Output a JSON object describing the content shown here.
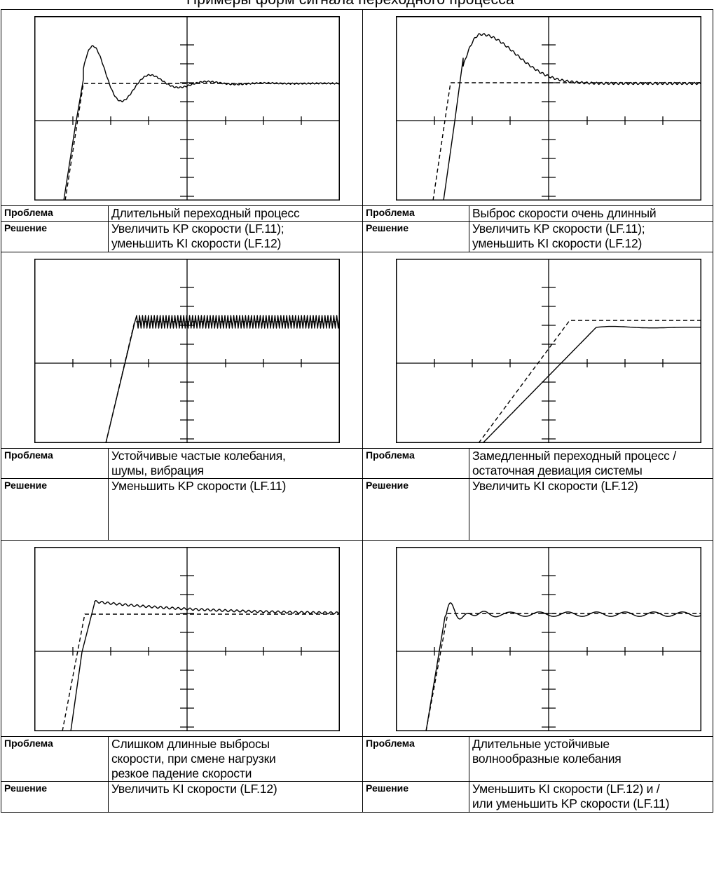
{
  "header_text": "Примеры форм сигнала переходного процесса",
  "label_problem": "Проблема",
  "label_solution": "Решение",
  "panels": [
    {
      "problem": [
        "Длительный переходный процесс"
      ],
      "solution": [
        "Увеличить KP скорости (LF.11);",
        "уменьшить KI скорости (LF.12)"
      ],
      "chart_data": {
        "type": "line",
        "pattern": "underdamped-long-oscillation",
        "series": [
          {
            "role": "reference",
            "style": "dashed"
          },
          {
            "role": "response",
            "style": "solid"
          }
        ]
      }
    },
    {
      "problem": [
        "Выброс скорости очень длинный"
      ],
      "solution": [
        "Увеличить KP скорости (LF.11);",
        "уменьшить KI скорости (LF.12)"
      ],
      "chart_data": {
        "type": "line",
        "pattern": "long-overshoot",
        "series": [
          {
            "role": "reference",
            "style": "dashed"
          },
          {
            "role": "response",
            "style": "solid"
          }
        ]
      }
    },
    {
      "problem": [
        "Устойчивые частые колебания,",
        "шумы, вибрация"
      ],
      "solution": [
        "Уменьшить KP скорости (LF.11)"
      ],
      "chart_data": {
        "type": "line",
        "pattern": "high-frequency-oscillation",
        "series": [
          {
            "role": "reference",
            "style": "dashed"
          },
          {
            "role": "response",
            "style": "solid"
          }
        ]
      }
    },
    {
      "problem": [
        "Замедленный переходный процесс /",
        "остаточная девиация системы"
      ],
      "solution": [
        "Увеличить KI скорости (LF.12)"
      ],
      "chart_data": {
        "type": "line",
        "pattern": "slow-response-offset",
        "series": [
          {
            "role": "reference",
            "style": "dashed"
          },
          {
            "role": "response",
            "style": "solid"
          }
        ]
      }
    },
    {
      "problem": [
        "Слишком длинные выбросы",
        "скорости, при смене нагрузки",
        "резкое падение скорости"
      ],
      "solution": [
        "Увеличить KI скорости (LF.12)"
      ],
      "chart_data": {
        "type": "line",
        "pattern": "overshoot-slow-decay",
        "series": [
          {
            "role": "reference",
            "style": "dashed"
          },
          {
            "role": "response",
            "style": "solid"
          }
        ]
      }
    },
    {
      "problem": [
        "Длительные устойчивые",
        "волнообразные колебания"
      ],
      "solution": [
        "Уменьшить KI скорости (LF.12) и /",
        "или уменьшить KP скорости (LF.11)"
      ],
      "chart_data": {
        "type": "line",
        "pattern": "persistent-ripple",
        "series": [
          {
            "role": "reference",
            "style": "dashed"
          },
          {
            "role": "response",
            "style": "solid"
          }
        ]
      }
    }
  ]
}
